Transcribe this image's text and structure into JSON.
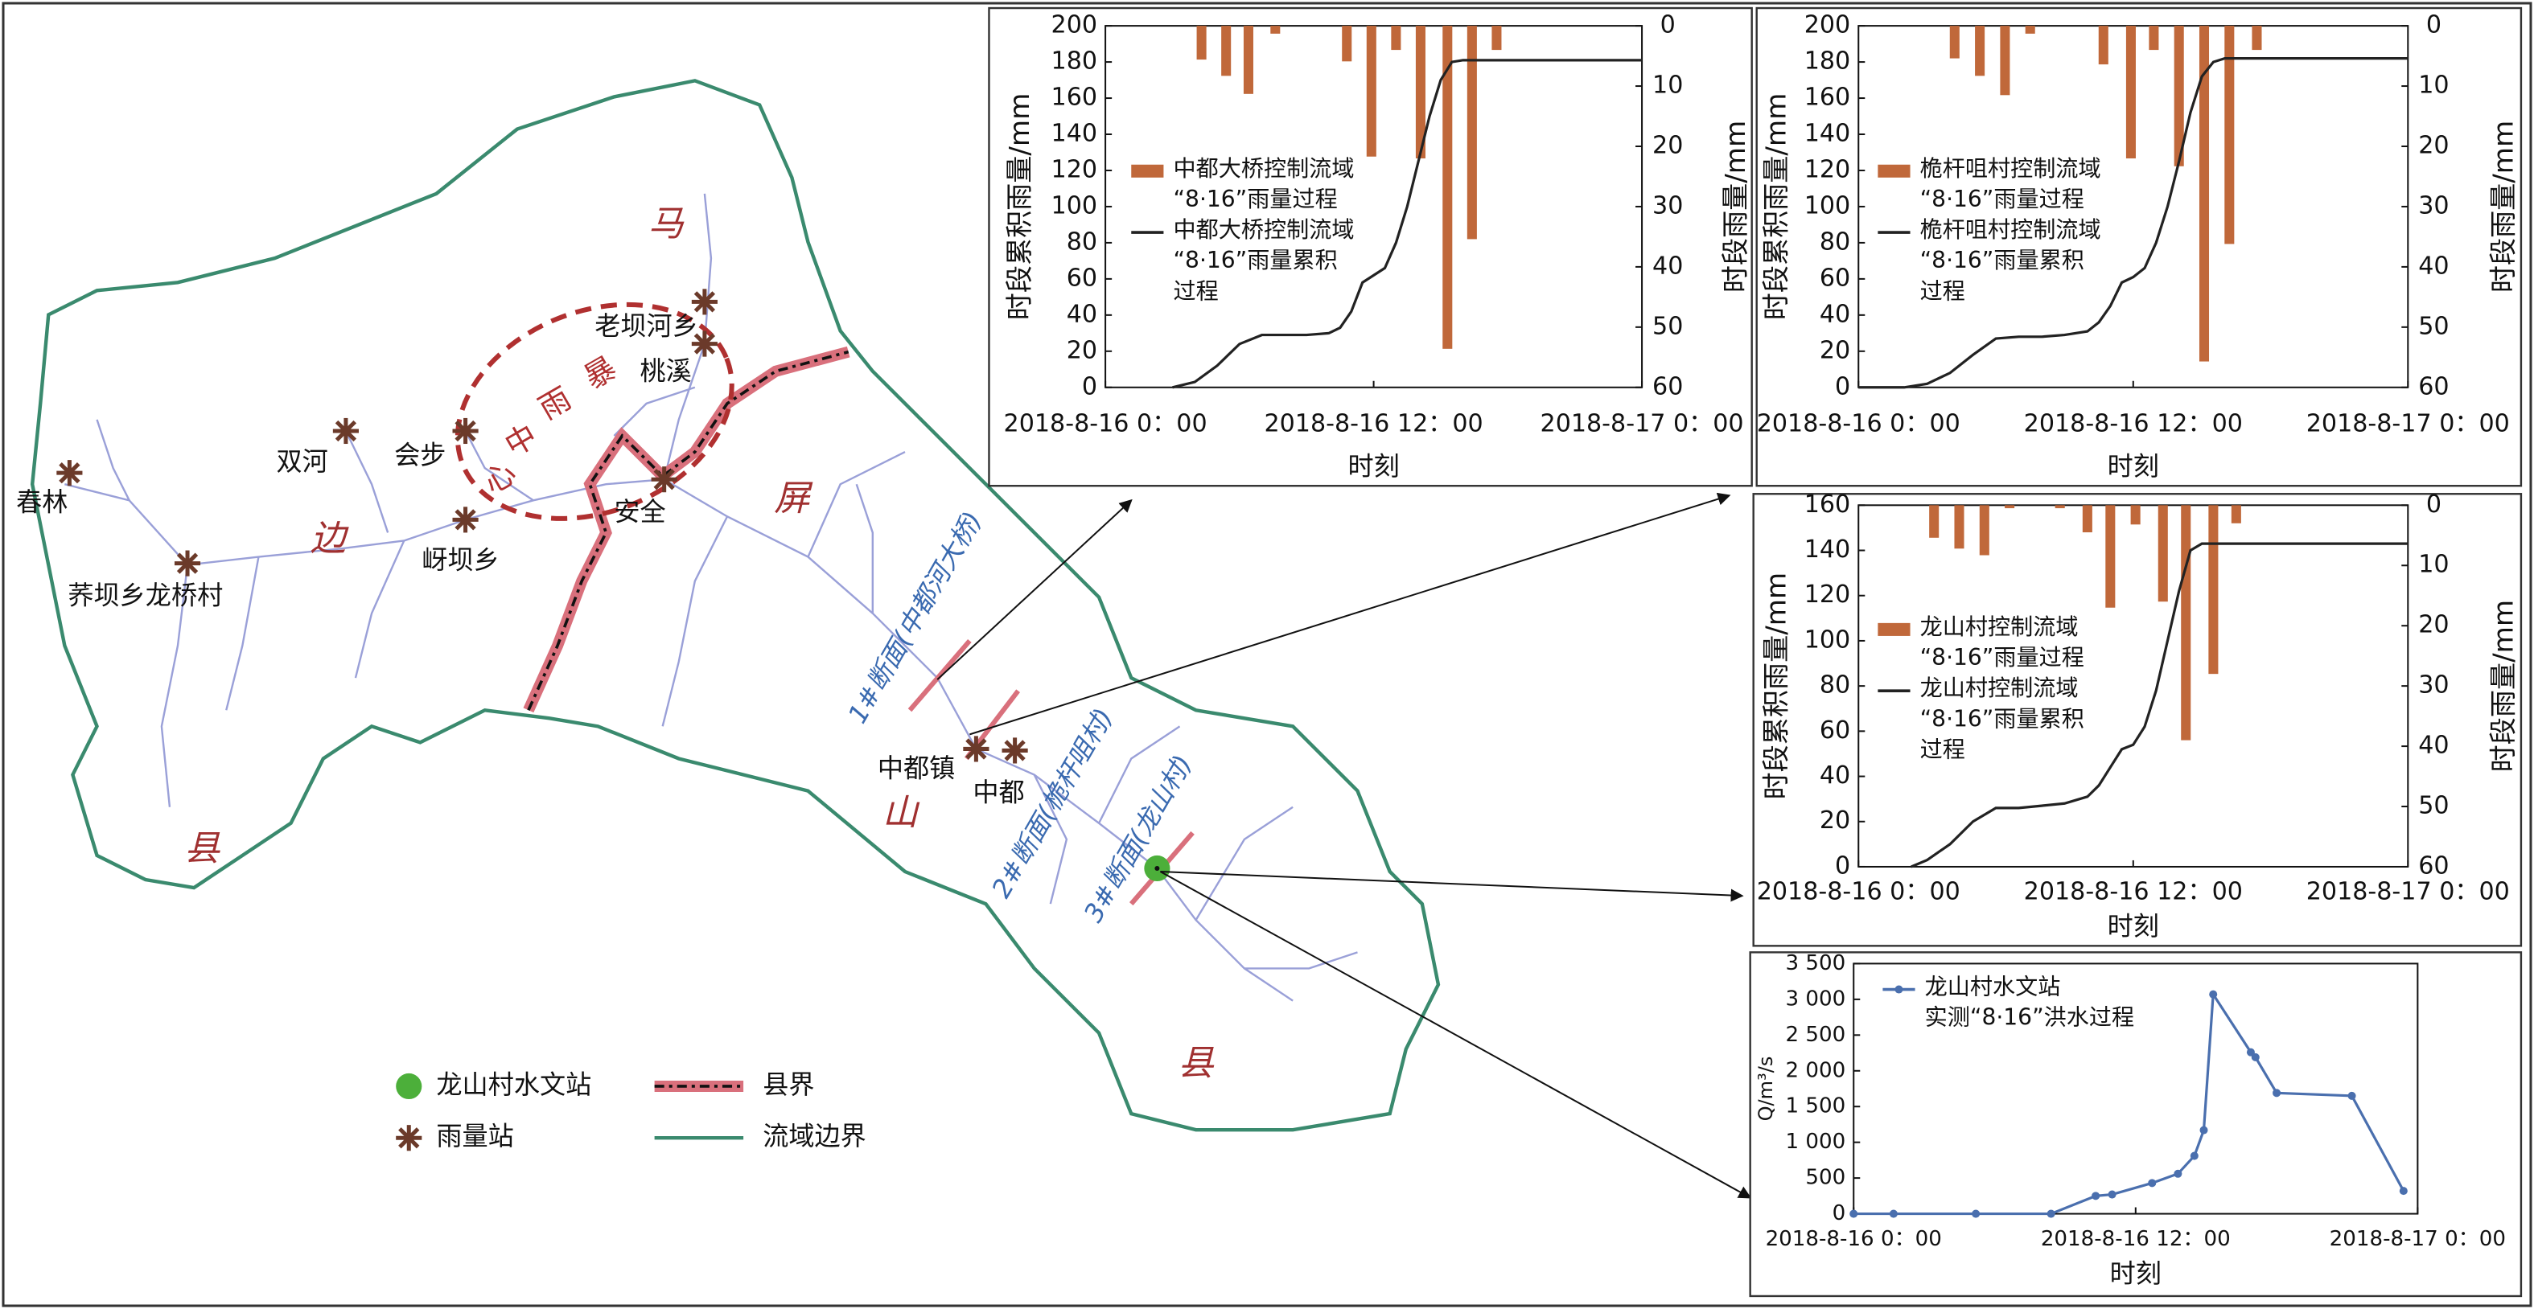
{
  "map": {
    "region_labels": [
      "马",
      "边",
      "屏",
      "山",
      "县",
      "县"
    ],
    "storm_center_chars": [
      "暴",
      "雨",
      "中",
      "心"
    ],
    "stations": [
      "春林",
      "双河",
      "会步",
      "老坝河乡",
      "桃溪",
      "安全",
      "岈坝乡",
      "荞坝乡龙桥村",
      "中都镇",
      "中都"
    ],
    "sections": [
      "1#断面(中都河大桥)",
      "2#断面(桅杆咀村)",
      "3#断面(龙山村)"
    ],
    "legend": [
      "龙山村水文站",
      "雨量站",
      "县界",
      "流域边界"
    ]
  },
  "chart_data": [
    {
      "type": "combo",
      "x_label": "时刻",
      "y_label": "时段累积雨量/mm",
      "y2_label": "时段雨量/mm",
      "xlim": [
        0,
        24
      ],
      "xticks": [
        {
          "value": 0,
          "label": "2018-8-16 0：00"
        },
        {
          "value": 12,
          "label": "2018-8-16 12：00"
        },
        {
          "value": 24,
          "label": "2018-8-17 0：00"
        }
      ],
      "ylim": [
        0,
        200
      ],
      "yticks": [
        0,
        20,
        40,
        60,
        80,
        100,
        120,
        140,
        160,
        180,
        200
      ],
      "y2lim": [
        0,
        60
      ],
      "y2ticks": [
        0,
        10,
        20,
        30,
        40,
        50,
        60
      ],
      "y2_inverted": true,
      "series": [
        {
          "name": "中都大桥控制流域\n“8·16”雨量过程",
          "kind": "bar",
          "axis": "y2",
          "color": "#c0683a",
          "x": [
            4.3,
            5.4,
            6.4,
            7.6,
            10.8,
            11.9,
            13,
            14.1,
            15.3,
            16.4,
            17.5
          ],
          "values": [
            5.6,
            8.3,
            11.3,
            1.3,
            5.9,
            21.7,
            4,
            22,
            53.6,
            35.4,
            4
          ]
        },
        {
          "name": "中都大桥控制流域\n“8·16”雨量累积\n过程",
          "kind": "line",
          "color": "#222222",
          "x": [
            3,
            4,
            5,
            6,
            7,
            8,
            9,
            10,
            10.5,
            11,
            11.5,
            12,
            12.5,
            13,
            13.5,
            14,
            14.5,
            15,
            15.5,
            16,
            16.5,
            24
          ],
          "values": [
            0,
            3,
            12,
            24,
            29,
            29,
            29,
            30,
            33,
            42,
            58,
            62,
            66,
            80,
            100,
            125,
            150,
            170,
            180,
            181,
            181,
            181
          ]
        }
      ]
    },
    {
      "type": "combo",
      "x_label": "时刻",
      "y_label": "时段累积雨量/mm",
      "y2_label": "时段雨量/mm",
      "xlim": [
        0,
        24
      ],
      "xticks": [
        {
          "value": 0,
          "label": "2018-8-16 0：00"
        },
        {
          "value": 12,
          "label": "2018-8-16 12：00"
        },
        {
          "value": 24,
          "label": "2018-8-17 0：00"
        }
      ],
      "ylim": [
        0,
        200
      ],
      "yticks": [
        0,
        20,
        40,
        60,
        80,
        100,
        120,
        140,
        160,
        180,
        200
      ],
      "y2lim": [
        0,
        60
      ],
      "y2ticks": [
        0,
        10,
        20,
        30,
        40,
        50,
        60
      ],
      "y2_inverted": true,
      "series": [
        {
          "name": "桅杆咀村控制流域\n“8·16”雨量过程",
          "kind": "bar",
          "axis": "y2",
          "color": "#c0683a",
          "x": [
            4.2,
            5.3,
            6.4,
            7.5,
            10.7,
            11.9,
            12.9,
            14,
            15.1,
            16.2,
            17.4
          ],
          "values": [
            5.4,
            8.3,
            11.5,
            1.3,
            6.4,
            22,
            4,
            23.3,
            55.7,
            36.2,
            4
          ]
        },
        {
          "name": "桅杆咀村控制流域\n“8·16”雨量累积\n过程",
          "kind": "line",
          "color": "#222222",
          "x": [
            0,
            2,
            3,
            4,
            5,
            6,
            7,
            8,
            9,
            10,
            10.5,
            11,
            11.5,
            12,
            12.5,
            13,
            13.5,
            14,
            14.5,
            15,
            15.5,
            16,
            24
          ],
          "values": [
            0,
            0,
            2,
            8,
            18,
            27,
            28,
            28,
            29,
            31,
            36,
            45,
            58,
            61,
            66,
            80,
            100,
            125,
            152,
            172,
            180,
            182,
            182
          ]
        }
      ]
    },
    {
      "type": "combo",
      "x_label": "时刻",
      "y_label": "时段累积雨量/mm",
      "y2_label": "时段雨量/mm",
      "xlim": [
        0,
        24
      ],
      "xticks": [
        {
          "value": 0,
          "label": "2018-8-16 0：00"
        },
        {
          "value": 12,
          "label": "2018-8-16 12：00"
        },
        {
          "value": 24,
          "label": "2018-8-17 0：00"
        }
      ],
      "ylim": [
        0,
        160
      ],
      "yticks": [
        0,
        20,
        40,
        60,
        80,
        100,
        120,
        140,
        160
      ],
      "y2lim": [
        0,
        60
      ],
      "y2ticks": [
        0,
        10,
        20,
        30,
        40,
        50,
        60
      ],
      "y2_inverted": true,
      "series": [
        {
          "name": "龙山村控制流域\n“8·16”雨量过程",
          "kind": "bar",
          "axis": "y2",
          "color": "#c0683a",
          "x": [
            3.3,
            4.4,
            5.5,
            6.6,
            8.8,
            10,
            11,
            12.1,
            13.3,
            14.3,
            15.5,
            16.5
          ],
          "values": [
            5.4,
            7.2,
            8.3,
            0.5,
            0.5,
            4.5,
            17,
            3.2,
            16,
            39,
            28,
            3
          ]
        },
        {
          "name": "龙山村控制流域\n“8·16”雨量累积\n过程",
          "kind": "line",
          "color": "#222222",
          "x": [
            2.3,
            3,
            4,
            5,
            6,
            7,
            8,
            9,
            10,
            10.5,
            11,
            11.5,
            12,
            12.5,
            13,
            13.5,
            14,
            14.5,
            15,
            15.5,
            24
          ],
          "values": [
            0,
            3,
            10,
            20,
            26,
            26,
            27,
            28,
            31,
            36,
            44,
            52,
            54,
            62,
            78,
            100,
            122,
            140,
            143,
            143,
            143
          ]
        }
      ]
    },
    {
      "type": "line",
      "x_label": "时刻",
      "y_label": "Q/m³/s",
      "xlim": [
        0,
        24
      ],
      "xticks": [
        {
          "value": 0,
          "label": "2018-8-16 0：00"
        },
        {
          "value": 12,
          "label": "2018-8-16 12：00"
        },
        {
          "value": 24,
          "label": "2018-8-17 0：00"
        }
      ],
      "ylim": [
        0,
        3500
      ],
      "yticks": [
        0,
        500,
        {
          "value": 1000,
          "label": "1 000"
        },
        {
          "value": 1500,
          "label": "1 500"
        },
        {
          "value": 2000,
          "label": "2 000"
        },
        {
          "value": 2500,
          "label": "2 500"
        },
        {
          "value": 3000,
          "label": "3 000"
        },
        {
          "value": 3500,
          "label": "3 500"
        }
      ],
      "series": [
        {
          "name": "龙山村水文站\n实测“8·16”洪水过程",
          "kind": "line",
          "color": "#4a6fae",
          "markers": true,
          "x": [
            0,
            1.7,
            5.2,
            8.4,
            10.3,
            11,
            12.7,
            13.8,
            14.5,
            14.9,
            15.3,
            16.9,
            17.1,
            18,
            21.2,
            23.4
          ],
          "values": [
            0,
            0,
            0,
            0,
            250,
            270,
            430,
            560,
            810,
            1170,
            3070,
            2260,
            2190,
            1690,
            1650,
            320
          ]
        }
      ]
    }
  ]
}
